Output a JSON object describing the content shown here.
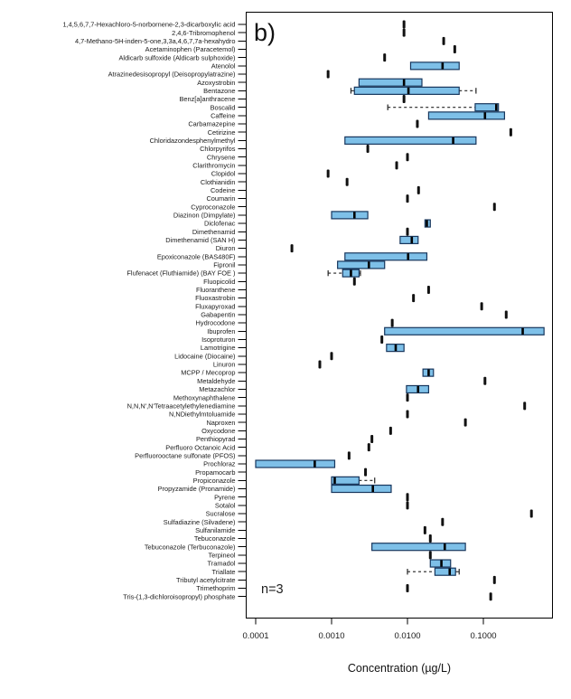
{
  "panel_label": "b)",
  "annotation": "n=3",
  "xlabel": "Concentration (µg/L)",
  "chart_data": {
    "type": "boxplot",
    "orientation": "horizontal",
    "x_scale": "log",
    "xlim": [
      7.5e-05,
      0.82
    ],
    "x_ticks": [
      0.0001,
      0.001,
      0.01,
      0.1
    ],
    "x_tick_labels": [
      "0.0001",
      "0.0010",
      "0.0100",
      "0.1000"
    ],
    "xlabel": "Concentration (µg/L)",
    "panel_label": "b)",
    "annotation": "n=3",
    "grid": false,
    "legend": "none",
    "colors": {
      "box_fill": "#7EC0E8",
      "box_stroke": "#17365D",
      "median": "#000000",
      "point": "#111111",
      "axis": "#000000",
      "label_text": "#1a1a1a"
    },
    "rows": [
      {
        "label": "1,4,5,6,7,7-Hexachloro-5-norbornene-2,3-dicarboxylic acid",
        "type": "point",
        "value": 0.009
      },
      {
        "label": "2,4,6-Tribromophenol",
        "type": "point",
        "value": 0.009
      },
      {
        "label": "4,7-Methano-5H-inden-5-one,3,3a,4,6,7,7a-hexahydro",
        "type": "point",
        "value": 0.03
      },
      {
        "label": "Acetaminophen (Paracetemol)",
        "type": "point",
        "value": 0.042
      },
      {
        "label": "Aldicarb sulfoxide (Aldicarb sulphoxide)",
        "type": "point",
        "value": 0.005
      },
      {
        "label": "Atenolol",
        "type": "box",
        "q1": 0.011,
        "median": 0.029,
        "q3": 0.048
      },
      {
        "label": "Atrazinedesisopropyl (Deisopropylatrazine)",
        "type": "point",
        "value": 0.0009
      },
      {
        "label": "Azoxystrobin",
        "type": "box",
        "q1": 0.0023,
        "median": 0.009,
        "q3": 0.0155
      },
      {
        "label": "Bentazone",
        "type": "box",
        "q1": 0.002,
        "median": 0.0103,
        "q3": 0.048,
        "wlo": 0.0018,
        "wlo_dash": false,
        "whi": 0.08,
        "whi_dash": true
      },
      {
        "label": "Benz[a]anthracene",
        "type": "point",
        "value": 0.009
      },
      {
        "label": "Boscalid",
        "type": "box",
        "q1": 0.078,
        "median": 0.148,
        "q3": 0.158,
        "wlo": 0.0055,
        "wlo_dash": true
      },
      {
        "label": "Caffeine",
        "type": "box",
        "q1": 0.019,
        "median": 0.105,
        "q3": 0.19
      },
      {
        "label": "Carbamazepine",
        "type": "point",
        "value": 0.0135
      },
      {
        "label": "Cetirizine",
        "type": "point",
        "value": 0.23
      },
      {
        "label": "Chloridazondesphenylmethyl",
        "type": "box",
        "q1": 0.0015,
        "median": 0.04,
        "q3": 0.08
      },
      {
        "label": "Chlorpyrifos",
        "type": "point",
        "value": 0.003
      },
      {
        "label": "Chrysene",
        "type": "point",
        "value": 0.01
      },
      {
        "label": "Clarithromycin",
        "type": "point",
        "value": 0.0072
      },
      {
        "label": "Clopidol",
        "type": "point",
        "value": 0.0009
      },
      {
        "label": "Clothianidin",
        "type": "point",
        "value": 0.0016
      },
      {
        "label": "Codeine",
        "type": "point",
        "value": 0.014
      },
      {
        "label": "Coumarin",
        "type": "point",
        "value": 0.01
      },
      {
        "label": "Cyproconazole",
        "type": "point",
        "value": 0.14
      },
      {
        "label": "Diazinon (Dimpylate)",
        "type": "box",
        "q1": 0.001,
        "median": 0.002,
        "q3": 0.003
      },
      {
        "label": "Diclofenac",
        "type": "box",
        "q1": 0.017,
        "median": 0.018,
        "q3": 0.02
      },
      {
        "label": "Dimethenamid",
        "type": "point",
        "value": 0.01
      },
      {
        "label": "Dimethenamid (SAN H)",
        "type": "box",
        "q1": 0.008,
        "median": 0.0114,
        "q3": 0.0138
      },
      {
        "label": "Diuron",
        "type": "point",
        "value": 0.0003
      },
      {
        "label": "Epoxiconazole (BAS480F)",
        "type": "box",
        "q1": 0.0015,
        "median": 0.0102,
        "q3": 0.018
      },
      {
        "label": "Fipronil",
        "type": "box",
        "q1": 0.0012,
        "median": 0.0031,
        "q3": 0.005
      },
      {
        "label": "Flufenacet (Fluthiamide) (BAY FOE )",
        "type": "box",
        "q1": 0.0014,
        "median": 0.0018,
        "q3": 0.0023,
        "wlo": 0.0009,
        "wlo_dash": true,
        "whi": 0.0024,
        "whi_dash": false
      },
      {
        "label": "Fluopicolid",
        "type": "point",
        "value": 0.002
      },
      {
        "label": "Fluoranthene",
        "type": "point",
        "value": 0.019
      },
      {
        "label": "Fluoxastrobin",
        "type": "point",
        "value": 0.012
      },
      {
        "label": "Fluxapyroxad",
        "type": "point",
        "value": 0.095
      },
      {
        "label": "Gabapentin",
        "type": "point",
        "value": 0.2
      },
      {
        "label": "Hydrocodone",
        "type": "point",
        "value": 0.0063
      },
      {
        "label": "Ibuprofen",
        "type": "box",
        "q1": 0.005,
        "median": 0.33,
        "q3": 0.63
      },
      {
        "label": "Isoproturon",
        "type": "point",
        "value": 0.0046
      },
      {
        "label": "Lamotrigine",
        "type": "box",
        "q1": 0.0053,
        "median": 0.007,
        "q3": 0.009
      },
      {
        "label": "Lidocaine (Diocaine)",
        "type": "point",
        "value": 0.001
      },
      {
        "label": "Linuron",
        "type": "point",
        "value": 0.0007
      },
      {
        "label": "MCPP / Mecoprop",
        "type": "box",
        "q1": 0.016,
        "median": 0.019,
        "q3": 0.022
      },
      {
        "label": "Metaldehyde",
        "type": "point",
        "value": 0.105
      },
      {
        "label": "Metazachlor",
        "type": "box",
        "q1": 0.0097,
        "median": 0.0138,
        "q3": 0.019
      },
      {
        "label": "Methoxynaphthalene",
        "type": "point",
        "value": 0.01
      },
      {
        "label": "N,N,N',N'Tetraacetylethylenediamine",
        "type": "point",
        "value": 0.35
      },
      {
        "label": "N,NDiethylmtoluamide",
        "type": "point",
        "value": 0.01
      },
      {
        "label": "Naproxen",
        "type": "point",
        "value": 0.058
      },
      {
        "label": "Oxycodone",
        "type": "point",
        "value": 0.006
      },
      {
        "label": "Penthiopyrad",
        "type": "point",
        "value": 0.0034
      },
      {
        "label": "Perfluoro Octanoic Acid",
        "type": "point",
        "value": 0.0031
      },
      {
        "label": "Perfluorooctane sulfonate (PFOS)",
        "type": "point",
        "value": 0.0017
      },
      {
        "label": "Prochloraz",
        "type": "box",
        "q1": 0.0001,
        "median": 0.0006,
        "q3": 0.0011
      },
      {
        "label": "Propamocarb",
        "type": "point",
        "value": 0.0028
      },
      {
        "label": "Propiconazole",
        "type": "box",
        "q1": 0.001,
        "median": 0.0011,
        "q3": 0.0023,
        "whi": 0.0037,
        "whi_dash": true
      },
      {
        "label": "Propyzamide (Pronamide)",
        "type": "box",
        "q1": 0.001,
        "median": 0.0035,
        "q3": 0.0061
      },
      {
        "label": "Pyrene",
        "type": "point",
        "value": 0.01
      },
      {
        "label": "Sotalol",
        "type": "point",
        "value": 0.01
      },
      {
        "label": "Sucralose",
        "type": "point",
        "value": 0.43
      },
      {
        "label": "Sulfadiazine (Silvadene)",
        "type": "point",
        "value": 0.029
      },
      {
        "label": "Sulfanilamide",
        "type": "point",
        "value": 0.017
      },
      {
        "label": "Tebuconazole",
        "type": "point",
        "value": 0.02
      },
      {
        "label": "Tebuconazole (Terbuconazole)",
        "type": "box",
        "q1": 0.0034,
        "median": 0.031,
        "q3": 0.058
      },
      {
        "label": "Terpineol",
        "type": "point",
        "value": 0.02
      },
      {
        "label": "Tramadol",
        "type": "box",
        "q1": 0.02,
        "median": 0.028,
        "q3": 0.037
      },
      {
        "label": "Triallate",
        "type": "box",
        "q1": 0.023,
        "median": 0.036,
        "q3": 0.043,
        "wlo": 0.01,
        "wlo_dash": true,
        "whi": 0.048,
        "whi_dash": false
      },
      {
        "label": "Tributyl acetylcitrate",
        "type": "point",
        "value": 0.14
      },
      {
        "label": "Trimethoprim",
        "type": "point",
        "value": 0.01
      },
      {
        "label": "Tris-(1,3-dichloroisopropyl) phosphate",
        "type": "point",
        "value": 0.125
      }
    ]
  }
}
